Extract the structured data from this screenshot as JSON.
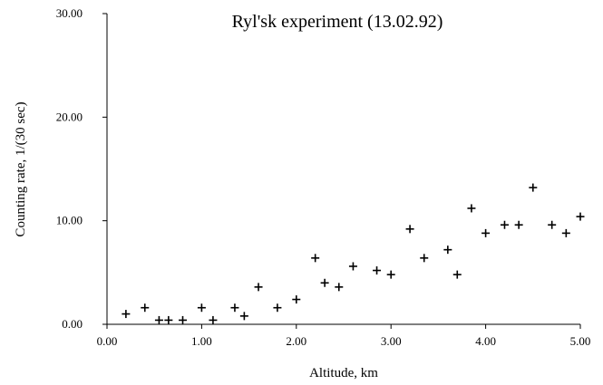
{
  "chart_data": {
    "type": "scatter",
    "title": "Ryl'sk experiment (13.02.92)",
    "xlabel": "Altitude, km",
    "ylabel": "Counting rate, 1/(30 sec)",
    "xlim": [
      0,
      5
    ],
    "ylim": [
      0,
      30
    ],
    "x_ticks": [
      "0.00",
      "1.00",
      "2.00",
      "3.00",
      "4.00",
      "5.00"
    ],
    "y_ticks": [
      "0.00",
      "10.00",
      "20.00",
      "30.00"
    ],
    "grid": false,
    "marker": "plus",
    "points": [
      {
        "x": 0.2,
        "y": 1.0
      },
      {
        "x": 0.4,
        "y": 1.6
      },
      {
        "x": 0.55,
        "y": 0.4
      },
      {
        "x": 0.65,
        "y": 0.4
      },
      {
        "x": 0.8,
        "y": 0.4
      },
      {
        "x": 1.0,
        "y": 1.6
      },
      {
        "x": 1.12,
        "y": 0.4
      },
      {
        "x": 1.35,
        "y": 1.6
      },
      {
        "x": 1.45,
        "y": 0.8
      },
      {
        "x": 1.6,
        "y": 3.6
      },
      {
        "x": 1.8,
        "y": 1.6
      },
      {
        "x": 2.0,
        "y": 2.4
      },
      {
        "x": 2.2,
        "y": 6.4
      },
      {
        "x": 2.3,
        "y": 4.0
      },
      {
        "x": 2.45,
        "y": 3.6
      },
      {
        "x": 2.6,
        "y": 5.6
      },
      {
        "x": 2.85,
        "y": 5.2
      },
      {
        "x": 3.0,
        "y": 4.8
      },
      {
        "x": 3.2,
        "y": 9.2
      },
      {
        "x": 3.35,
        "y": 6.4
      },
      {
        "x": 3.6,
        "y": 7.2
      },
      {
        "x": 3.7,
        "y": 4.8
      },
      {
        "x": 3.85,
        "y": 11.2
      },
      {
        "x": 4.0,
        "y": 8.8
      },
      {
        "x": 4.2,
        "y": 9.6
      },
      {
        "x": 4.35,
        "y": 9.6
      },
      {
        "x": 4.5,
        "y": 13.2
      },
      {
        "x": 4.7,
        "y": 9.6
      },
      {
        "x": 4.85,
        "y": 8.8
      },
      {
        "x": 5.0,
        "y": 10.4
      }
    ]
  }
}
